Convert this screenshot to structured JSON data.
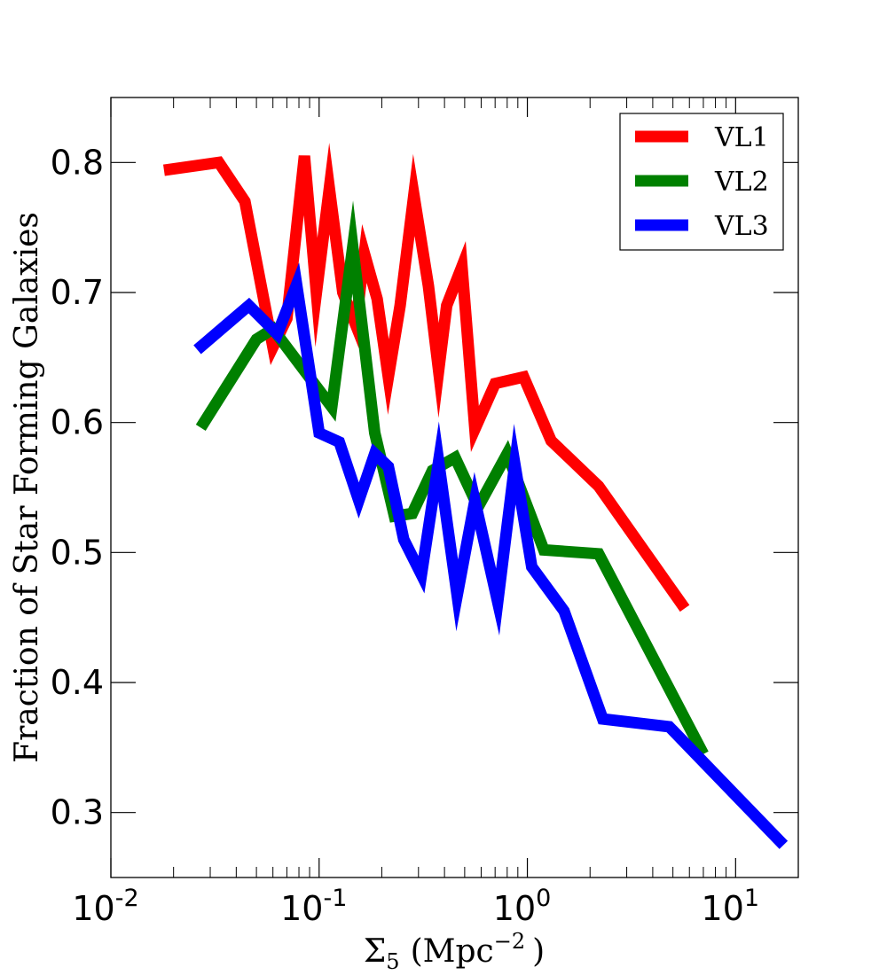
{
  "chart_data": {
    "type": "line",
    "xscale": "log",
    "xlim": [
      0.01,
      20
    ],
    "ylim": [
      0.25,
      0.85
    ],
    "xlabel": "Σ5 (Mpc−2 )",
    "xlabel_parts": {
      "symbol": "Σ",
      "subscript": "5",
      "open": "(Mpc",
      "superscript": "−2",
      "close": ")"
    },
    "ylabel": "Fraction of Star Forming Galaxies",
    "x_ticks": [
      {
        "value": 0.01,
        "base": "10",
        "exp": "-2"
      },
      {
        "value": 0.1,
        "base": "10",
        "exp": "-1"
      },
      {
        "value": 1,
        "base": "10",
        "exp": "0"
      },
      {
        "value": 10,
        "base": "10",
        "exp": "1"
      }
    ],
    "y_ticks": [
      {
        "value": 0.3,
        "label": "0.3"
      },
      {
        "value": 0.4,
        "label": "0.4"
      },
      {
        "value": 0.5,
        "label": "0.5"
      },
      {
        "value": 0.6,
        "label": "0.6"
      },
      {
        "value": 0.7,
        "label": "0.7"
      },
      {
        "value": 0.8,
        "label": "0.8"
      }
    ],
    "legend_position": "top-right",
    "grid": false,
    "series": [
      {
        "name": "VL1",
        "color": "#ff0000",
        "points": [
          [
            0.018,
            0.794
          ],
          [
            0.033,
            0.8
          ],
          [
            0.044,
            0.77
          ],
          [
            0.06,
            0.658
          ],
          [
            0.07,
            0.68
          ],
          [
            0.085,
            0.805
          ],
          [
            0.097,
            0.7
          ],
          [
            0.112,
            0.78
          ],
          [
            0.13,
            0.7
          ],
          [
            0.15,
            0.675
          ],
          [
            0.165,
            0.73
          ],
          [
            0.19,
            0.695
          ],
          [
            0.215,
            0.635
          ],
          [
            0.245,
            0.69
          ],
          [
            0.285,
            0.775
          ],
          [
            0.335,
            0.705
          ],
          [
            0.375,
            0.64
          ],
          [
            0.41,
            0.69
          ],
          [
            0.485,
            0.72
          ],
          [
            0.56,
            0.595
          ],
          [
            0.7,
            0.63
          ],
          [
            0.96,
            0.635
          ],
          [
            1.3,
            0.586
          ],
          [
            2.2,
            0.551
          ],
          [
            5.7,
            0.457
          ]
        ]
      },
      {
        "name": "VL2",
        "color": "#008000",
        "points": [
          [
            0.027,
            0.596
          ],
          [
            0.05,
            0.664
          ],
          [
            0.06,
            0.672
          ],
          [
            0.115,
            0.612
          ],
          [
            0.145,
            0.735
          ],
          [
            0.185,
            0.592
          ],
          [
            0.23,
            0.528
          ],
          [
            0.28,
            0.53
          ],
          [
            0.35,
            0.563
          ],
          [
            0.45,
            0.573
          ],
          [
            0.58,
            0.535
          ],
          [
            0.8,
            0.576
          ],
          [
            1.2,
            0.502
          ],
          [
            2.2,
            0.499
          ],
          [
            7.0,
            0.345
          ]
        ]
      },
      {
        "name": "VL3",
        "color": "#0000ff",
        "points": [
          [
            0.026,
            0.656
          ],
          [
            0.046,
            0.69
          ],
          [
            0.063,
            0.668
          ],
          [
            0.078,
            0.706
          ],
          [
            0.1,
            0.592
          ],
          [
            0.125,
            0.585
          ],
          [
            0.155,
            0.54
          ],
          [
            0.185,
            0.576
          ],
          [
            0.215,
            0.566
          ],
          [
            0.255,
            0.51
          ],
          [
            0.31,
            0.483
          ],
          [
            0.375,
            0.57
          ],
          [
            0.46,
            0.467
          ],
          [
            0.56,
            0.54
          ],
          [
            0.72,
            0.462
          ],
          [
            0.87,
            0.568
          ],
          [
            1.05,
            0.489
          ],
          [
            1.5,
            0.455
          ],
          [
            2.3,
            0.372
          ],
          [
            4.8,
            0.366
          ],
          [
            17.0,
            0.275
          ]
        ]
      }
    ]
  }
}
